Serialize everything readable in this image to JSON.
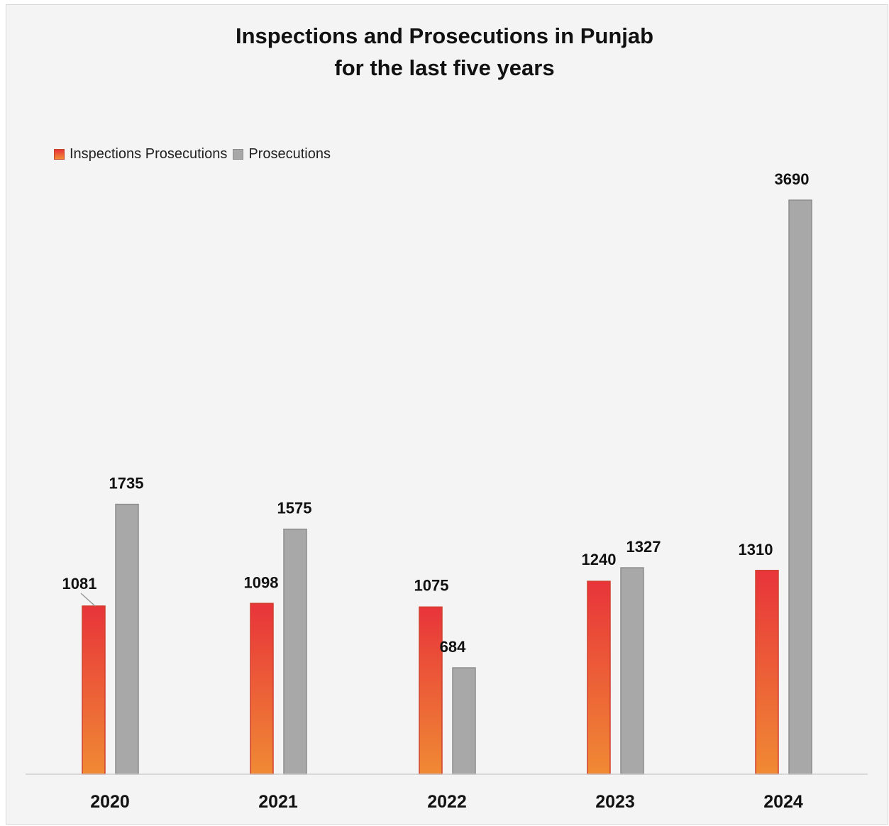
{
  "chart_data": {
    "type": "bar",
    "title_lines": [
      "Inspections and Prosecutions in Punjab",
      "for the last five years"
    ],
    "xlabel": "",
    "ylabel": "",
    "categories": [
      "2020",
      "2021",
      "2022",
      "2023",
      "2024"
    ],
    "series": [
      {
        "name": "Inspections Prosecutions",
        "values": [
          1081,
          1098,
          1075,
          1240,
          1310
        ],
        "color": "#e8343a",
        "color_bottom": "#f08a34"
      },
      {
        "name": "Prosecutions",
        "values": [
          1735,
          1575,
          684,
          1327,
          3690
        ],
        "color": "#a8a8a8"
      }
    ],
    "ylim": [
      0,
      3690
    ],
    "grid": false,
    "legend_position": "top-left",
    "data_labels": true
  }
}
